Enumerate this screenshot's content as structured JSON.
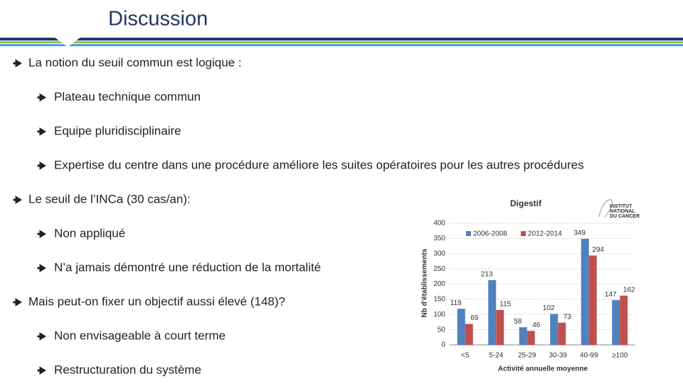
{
  "header": {
    "title": "Discussion"
  },
  "bullets": [
    {
      "level": 1,
      "text": "La notion du seuil commun est logique :"
    },
    {
      "level": 2,
      "text": "Plateau technique commun"
    },
    {
      "level": 2,
      "text": "Equipe pluridisciplinaire"
    },
    {
      "level": 2,
      "text": "Expertise du centre dans une procédure améliore les suites opératoires pour les autres procédures"
    },
    {
      "level": 1,
      "text": "Le seuil de l’INCa (30 cas/an):"
    },
    {
      "level": 2,
      "text": "Non appliqué"
    },
    {
      "level": 2,
      "text": "N’a jamais démontré une réduction de la mortalité"
    },
    {
      "level": 1,
      "text": "Mais peut-on fixer un objectif aussi élevé (148)?"
    },
    {
      "level": 2,
      "text": "Non envisageable à court terme"
    },
    {
      "level": 2,
      "text": "Restructuration du système"
    }
  ],
  "chart_data": {
    "type": "bar",
    "title": "Digestif",
    "logo_text": [
      "INSTITUT",
      "NATIONAL",
      "DU CANCER"
    ],
    "y_label": "Nb d'établissements",
    "x_label": "Activité annuelle moyenne",
    "categories": [
      "<5",
      "5-24",
      "25-29",
      "30-39",
      "40-99",
      "≥100"
    ],
    "series": [
      {
        "name": "2006-2008",
        "color": "#4f81bd",
        "values": [
          119,
          213,
          58,
          102,
          349,
          147
        ]
      },
      {
        "name": "2012-2014",
        "color": "#c0504d",
        "values": [
          69,
          115,
          46,
          73,
          294,
          162
        ]
      }
    ],
    "ylim": [
      0,
      400
    ],
    "yticks": [
      0,
      50,
      100,
      150,
      200,
      250,
      300,
      350,
      400
    ],
    "grid": true
  }
}
